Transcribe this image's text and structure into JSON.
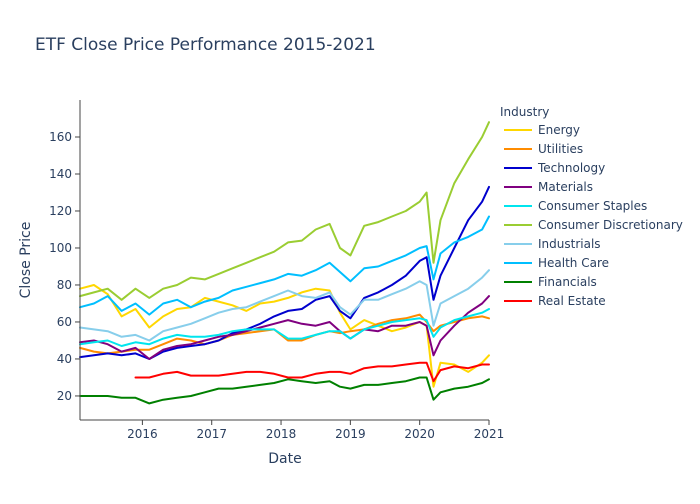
{
  "chart_data": {
    "type": "line",
    "title": "ETF Close Price Performance 2015-2021",
    "xlabel": "Date",
    "ylabel": "Close Price",
    "legend_title": "Industry",
    "legend_position": "right",
    "grid": false,
    "xlim": [
      2015.1,
      2021.0
    ],
    "ylim": [
      7,
      180
    ],
    "x_ticks": [
      2016,
      2017,
      2018,
      2019,
      2020,
      2021
    ],
    "x_tick_labels": [
      "2016",
      "2017",
      "2018",
      "2019",
      "2020",
      "2021"
    ],
    "y_ticks": [
      20,
      40,
      60,
      80,
      100,
      120,
      140,
      160
    ],
    "y_tick_labels": [
      "20",
      "40",
      "60",
      "80",
      "100",
      "120",
      "140",
      "160"
    ],
    "x": [
      2015.1,
      2015.3,
      2015.5,
      2015.7,
      2015.9,
      2016.1,
      2016.3,
      2016.5,
      2016.7,
      2016.9,
      2017.1,
      2017.3,
      2017.5,
      2017.7,
      2017.9,
      2018.1,
      2018.3,
      2018.5,
      2018.7,
      2018.85,
      2019.0,
      2019.2,
      2019.4,
      2019.6,
      2019.8,
      2020.0,
      2020.1,
      2020.2,
      2020.3,
      2020.5,
      2020.7,
      2020.9,
      2021.0
    ],
    "series": [
      {
        "name": "Energy",
        "color": "#FFD700",
        "values": [
          78,
          80,
          75,
          63,
          67,
          57,
          63,
          67,
          68,
          73,
          71,
          69,
          66,
          70,
          71,
          73,
          76,
          78,
          77,
          65,
          56,
          61,
          58,
          55,
          57,
          60,
          58,
          25,
          38,
          37,
          33,
          38,
          42
        ]
      },
      {
        "name": "Utilities",
        "color": "#FF8C00",
        "values": [
          46,
          44,
          43,
          44,
          45,
          45,
          48,
          51,
          50,
          48,
          50,
          53,
          54,
          55,
          56,
          50,
          50,
          53,
          55,
          54,
          55,
          56,
          59,
          61,
          62,
          64,
          60,
          55,
          58,
          60,
          62,
          63,
          62
        ]
      },
      {
        "name": "Technology",
        "color": "#0000CD",
        "values": [
          41,
          42,
          43,
          42,
          43,
          40,
          44,
          46,
          47,
          48,
          50,
          54,
          56,
          59,
          63,
          66,
          67,
          72,
          74,
          66,
          62,
          73,
          76,
          80,
          85,
          93,
          95,
          72,
          85,
          100,
          115,
          125,
          133
        ]
      },
      {
        "name": "Materials",
        "color": "#800080",
        "values": [
          49,
          50,
          48,
          44,
          46,
          40,
          45,
          47,
          48,
          50,
          52,
          53,
          55,
          57,
          59,
          61,
          59,
          58,
          60,
          55,
          51,
          56,
          55,
          58,
          58,
          60,
          58,
          42,
          50,
          58,
          65,
          70,
          74
        ]
      },
      {
        "name": "Consumer Staples",
        "color": "#00E5EE",
        "values": [
          48,
          49,
          50,
          47,
          49,
          48,
          51,
          53,
          52,
          52,
          53,
          55,
          56,
          56,
          56,
          51,
          51,
          53,
          55,
          55,
          51,
          56,
          58,
          60,
          61,
          62,
          61,
          52,
          57,
          61,
          63,
          65,
          67
        ]
      },
      {
        "name": "Consumer Discretionary",
        "color": "#9ACD32",
        "values": [
          74,
          76,
          78,
          72,
          78,
          73,
          78,
          80,
          84,
          83,
          86,
          89,
          92,
          95,
          98,
          103,
          104,
          110,
          113,
          100,
          96,
          112,
          114,
          117,
          120,
          125,
          130,
          92,
          115,
          135,
          148,
          160,
          168
        ]
      },
      {
        "name": "Industrials",
        "color": "#87CEEB",
        "values": [
          57,
          56,
          55,
          52,
          53,
          50,
          55,
          57,
          59,
          62,
          65,
          67,
          68,
          71,
          74,
          77,
          74,
          73,
          76,
          68,
          64,
          72,
          72,
          75,
          78,
          82,
          80,
          58,
          70,
          74,
          78,
          84,
          88
        ]
      },
      {
        "name": "Health Care",
        "color": "#00BFFF",
        "values": [
          68,
          70,
          74,
          66,
          70,
          64,
          70,
          72,
          68,
          71,
          73,
          77,
          79,
          81,
          83,
          86,
          85,
          88,
          92,
          87,
          82,
          89,
          90,
          93,
          96,
          100,
          101,
          83,
          97,
          103,
          106,
          110,
          117
        ]
      },
      {
        "name": "Financials",
        "color": "#008000",
        "values": [
          20,
          20,
          20,
          19,
          19,
          16,
          18,
          19,
          20,
          22,
          24,
          24,
          25,
          26,
          27,
          29,
          28,
          27,
          28,
          25,
          24,
          26,
          26,
          27,
          28,
          30,
          30,
          18,
          22,
          24,
          25,
          27,
          29
        ]
      },
      {
        "name": "Real Estate",
        "color": "#FF0000",
        "values": [
          null,
          null,
          null,
          null,
          30,
          30,
          32,
          33,
          31,
          31,
          31,
          32,
          33,
          33,
          32,
          30,
          30,
          32,
          33,
          33,
          32,
          35,
          36,
          36,
          37,
          38,
          38,
          28,
          34,
          36,
          35,
          37,
          37
        ]
      }
    ]
  }
}
